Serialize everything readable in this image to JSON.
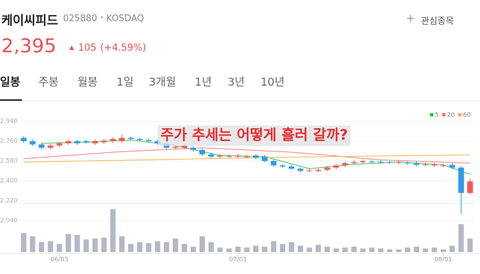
{
  "header": {
    "name": "케이씨피드",
    "code": "025880",
    "market": "KOSDAQ",
    "watchlist": "관심종목",
    "price": "2,395",
    "change": "105",
    "change_pct": "(+4.59%)"
  },
  "tabs": [
    "일봉",
    "주봉",
    "월봉",
    "1일",
    "3개월",
    "1년",
    "3년",
    "10년"
  ],
  "chart_data": {
    "type": "candlestick",
    "annotation": "주가 추세는 어떻게 흘러 갈까?",
    "categories": [
      null,
      null,
      null,
      null,
      "06/03",
      null,
      null,
      null,
      null,
      null,
      null,
      null,
      null,
      null,
      null,
      null,
      null,
      null,
      null,
      null,
      null,
      null,
      null,
      null,
      "07/01",
      null,
      null,
      null,
      null,
      null,
      null,
      null,
      null,
      null,
      null,
      null,
      null,
      null,
      null,
      null,
      null,
      null,
      null,
      null,
      null,
      null,
      null,
      "08/01",
      null,
      null,
      null
    ],
    "open": [
      2790,
      2760,
      2730,
      2700,
      2720,
      2740,
      2760,
      2760,
      2740,
      2750,
      2760,
      2760,
      2790,
      2780,
      2770,
      2760,
      2740,
      2700,
      2700,
      2700,
      2680,
      2640,
      2620,
      2620,
      2620,
      2620,
      2630,
      2620,
      2580,
      2540,
      2530,
      2510,
      2490,
      2490,
      2500,
      2520,
      2540,
      2560,
      2570,
      2575,
      2575,
      2570,
      2565,
      2565,
      2560,
      2545,
      2540,
      2540,
      2545,
      2520,
      2290
    ],
    "high": [
      2805,
      2775,
      2745,
      2735,
      2755,
      2775,
      2775,
      2775,
      2775,
      2780,
      2795,
      2820,
      2805,
      2795,
      2785,
      2775,
      2755,
      2725,
      2735,
      2715,
      2695,
      2655,
      2645,
      2640,
      2645,
      2635,
      2645,
      2635,
      2595,
      2555,
      2545,
      2525,
      2510,
      2515,
      2535,
      2555,
      2575,
      2585,
      2595,
      2590,
      2590,
      2585,
      2585,
      2580,
      2575,
      2565,
      2565,
      2555,
      2560,
      2535,
      2420
    ],
    "low": [
      2745,
      2715,
      2685,
      2685,
      2705,
      2725,
      2725,
      2735,
      2725,
      2735,
      2745,
      2745,
      2765,
      2755,
      2745,
      2725,
      2685,
      2685,
      2685,
      2665,
      2625,
      2605,
      2605,
      2605,
      2605,
      2605,
      2595,
      2565,
      2525,
      2515,
      2495,
      2475,
      2475,
      2475,
      2485,
      2505,
      2525,
      2545,
      2555,
      2555,
      2555,
      2550,
      2550,
      2545,
      2530,
      2530,
      2525,
      2525,
      2505,
      2100,
      2280
    ],
    "close": [
      2760,
      2730,
      2700,
      2720,
      2740,
      2760,
      2740,
      2750,
      2760,
      2765,
      2780,
      2790,
      2780,
      2770,
      2760,
      2740,
      2700,
      2710,
      2720,
      2680,
      2640,
      2620,
      2630,
      2625,
      2630,
      2620,
      2610,
      2580,
      2540,
      2530,
      2510,
      2490,
      2495,
      2500,
      2520,
      2540,
      2560,
      2570,
      2580,
      2570,
      2570,
      2565,
      2570,
      2560,
      2545,
      2550,
      2550,
      2540,
      2520,
      2290,
      2395
    ],
    "volume": [
      42,
      35,
      22,
      24,
      18,
      40,
      38,
      28,
      30,
      32,
      95,
      35,
      18,
      22,
      20,
      24,
      22,
      30,
      18,
      12,
      35,
      22,
      10,
      8,
      12,
      10,
      14,
      12,
      24,
      18,
      22,
      14,
      10,
      16,
      12,
      8,
      10,
      12,
      8,
      10,
      8,
      6,
      6,
      10,
      12,
      8,
      10,
      6,
      14,
      62,
      30
    ],
    "up_color": "#ee5a55",
    "down_color": "#2f9be8",
    "volume_color": "#b4b8c4",
    "ylim": [
      1990,
      3015
    ],
    "yticks": [
      {
        "value": 2040,
        "label": "2,040"
      },
      {
        "value": 2220,
        "label": "2,220"
      },
      {
        "value": 2400,
        "label": "2,400"
      },
      {
        "value": 2580,
        "label": "2,580"
      },
      {
        "value": 2760,
        "label": "2,760"
      },
      {
        "value": 2940,
        "label": "2,940"
      }
    ],
    "volume_ylim": [
      0,
      100
    ],
    "grid": true,
    "series": [
      {
        "name": "5",
        "color": "#35c24a",
        "x": [
          2,
          7,
          12,
          17,
          22,
          27,
          32,
          37,
          42,
          47,
          50
        ],
        "values": [
          2740,
          2750,
          2770,
          2720,
          2630,
          2620,
          2510,
          2550,
          2570,
          2545,
          2460
        ]
      },
      {
        "name": "20",
        "color": "#f07a7a",
        "x": [
          0,
          10,
          20,
          30,
          40,
          50
        ],
        "values": [
          2600,
          2660,
          2700,
          2660,
          2590,
          2560
        ]
      },
      {
        "name": "60",
        "color": "#f2b04a",
        "x": [
          0,
          10,
          20,
          30,
          40,
          50
        ],
        "values": [
          2570,
          2585,
          2600,
          2615,
          2625,
          2635
        ]
      }
    ]
  }
}
